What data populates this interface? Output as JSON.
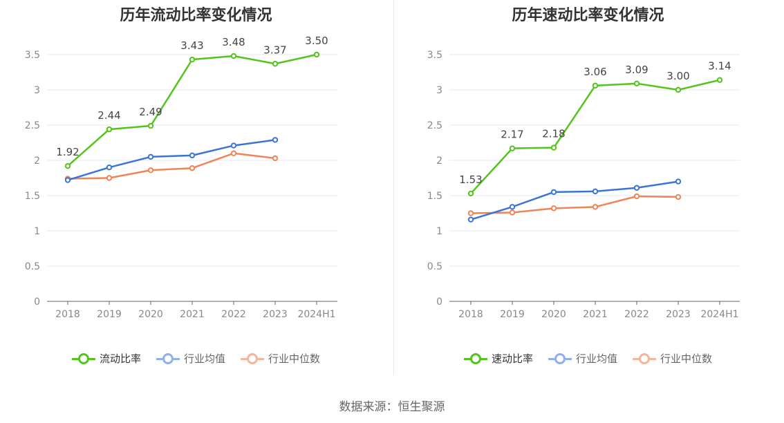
{
  "source_text": "数据来源：恒生聚源",
  "colors": {
    "company": "#52c41a",
    "industry_avg": "#3a74d9",
    "industry_median": "#f08457"
  },
  "chart_data": [
    {
      "type": "line",
      "title": "历年流动比率变化情况",
      "categories": [
        "2018",
        "2019",
        "2020",
        "2021",
        "2022",
        "2023",
        "2024H1"
      ],
      "yticks": [
        "0",
        "0.5",
        "1",
        "1.5",
        "2",
        "2.5",
        "3",
        "3.5"
      ],
      "ylim": [
        0,
        3.5
      ],
      "grid": true,
      "legend_position": "bottom",
      "series": [
        {
          "name": "流动比率",
          "key": "company",
          "values": [
            1.92,
            2.44,
            2.49,
            3.43,
            3.48,
            3.37,
            3.5
          ],
          "labels": [
            "1.92",
            "2.44",
            "2.49",
            "3.43",
            "3.48",
            "3.37",
            "3.50"
          ]
        },
        {
          "name": "行业均值",
          "key": "industry_avg",
          "values": [
            1.72,
            1.9,
            2.05,
            2.07,
            2.21,
            2.29,
            null
          ]
        },
        {
          "name": "行业中位数",
          "key": "industry_median",
          "values": [
            1.74,
            1.75,
            1.86,
            1.89,
            2.1,
            2.03,
            null
          ]
        }
      ]
    },
    {
      "type": "line",
      "title": "历年速动比率变化情况",
      "categories": [
        "2018",
        "2019",
        "2020",
        "2021",
        "2022",
        "2023",
        "2024H1"
      ],
      "yticks": [
        "0",
        "0.5",
        "1",
        "1.5",
        "2",
        "2.5",
        "3",
        "3.5"
      ],
      "ylim": [
        0,
        3.5
      ],
      "grid": true,
      "legend_position": "bottom",
      "series": [
        {
          "name": "速动比率",
          "key": "company",
          "values": [
            1.53,
            2.17,
            2.18,
            3.06,
            3.09,
            3.0,
            3.14
          ],
          "labels": [
            "1.53",
            "2.17",
            "2.18",
            "3.06",
            "3.09",
            "3.00",
            "3.14"
          ]
        },
        {
          "name": "行业均值",
          "key": "industry_avg",
          "values": [
            1.16,
            1.34,
            1.55,
            1.56,
            1.61,
            1.7,
            null
          ]
        },
        {
          "name": "行业中位数",
          "key": "industry_median",
          "values": [
            1.25,
            1.26,
            1.32,
            1.34,
            1.49,
            1.48,
            null
          ]
        }
      ]
    }
  ]
}
